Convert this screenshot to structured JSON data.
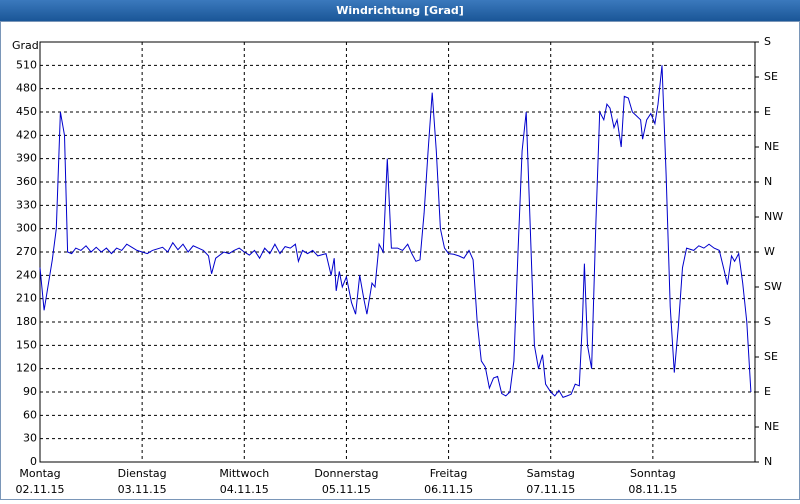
{
  "chart_data": {
    "type": "line",
    "title": "Windrichtung [Grad]",
    "ylabel": "Grad",
    "x": [
      0,
      0.04,
      0.12,
      0.16,
      0.2,
      0.24,
      0.27,
      0.31,
      0.35,
      0.4,
      0.45,
      0.5,
      0.55,
      0.6,
      0.65,
      0.7,
      0.75,
      0.8,
      0.85,
      0.9,
      0.95,
      1,
      1.05,
      1.1,
      1.2,
      1.25,
      1.3,
      1.35,
      1.4,
      1.45,
      1.5,
      1.55,
      1.6,
      1.65,
      1.68,
      1.72,
      1.8,
      1.85,
      1.9,
      1.95,
      2,
      2.05,
      2.1,
      2.15,
      2.2,
      2.25,
      2.3,
      2.35,
      2.4,
      2.45,
      2.5,
      2.53,
      2.57,
      2.62,
      2.67,
      2.72,
      2.8,
      2.85,
      2.88,
      2.9,
      2.93,
      2.96,
      3,
      3.05,
      3.09,
      3.13,
      3.17,
      3.2,
      3.25,
      3.28,
      3.32,
      3.36,
      3.4,
      3.44,
      3.5,
      3.55,
      3.6,
      3.64,
      3.68,
      3.72,
      3.76,
      3.8,
      3.84,
      3.88,
      3.92,
      3.96,
      4,
      4.05,
      4.1,
      4.15,
      4.2,
      4.24,
      4.28,
      4.32,
      4.36,
      4.4,
      4.44,
      4.48,
      4.52,
      4.56,
      4.6,
      4.64,
      4.68,
      4.72,
      4.76,
      4.8,
      4.84,
      4.88,
      4.92,
      4.95,
      5,
      5.04,
      5.08,
      5.12,
      5.16,
      5.2,
      5.24,
      5.28,
      5.31,
      5.33,
      5.36,
      5.4,
      5.44,
      5.48,
      5.52,
      5.55,
      5.58,
      5.62,
      5.65,
      5.69,
      5.72,
      5.76,
      5.8,
      5.84,
      5.88,
      5.9,
      5.94,
      5.98,
      6.02,
      6.05,
      6.09,
      6.13,
      6.17,
      6.21,
      6.25,
      6.29,
      6.33,
      6.4,
      6.45,
      6.5,
      6.55,
      6.6,
      6.65,
      6.7,
      6.73,
      6.77,
      6.8,
      6.84,
      6.88,
      6.92,
      6.96
    ],
    "series": [
      {
        "color": "#0000cc",
        "values": [
          250,
          195,
          260,
          300,
          450,
          420,
          270,
          268,
          275,
          272,
          278,
          270,
          276,
          270,
          275,
          268,
          275,
          272,
          280,
          276,
          272,
          270,
          268,
          272,
          276,
          270,
          282,
          273,
          280,
          270,
          278,
          275,
          272,
          265,
          242,
          262,
          270,
          268,
          272,
          275,
          270,
          266,
          272,
          262,
          275,
          268,
          280,
          268,
          277,
          275,
          280,
          258,
          272,
          268,
          272,
          265,
          268,
          240,
          262,
          220,
          245,
          225,
          238,
          205,
          190,
          240,
          210,
          190,
          230,
          225,
          280,
          270,
          390,
          275,
          275,
          272,
          280,
          268,
          258,
          260,
          320,
          400,
          475,
          400,
          300,
          275,
          268,
          267,
          265,
          262,
          272,
          260,
          180,
          130,
          122,
          95,
          108,
          110,
          88,
          85,
          90,
          130,
          270,
          400,
          450,
          300,
          150,
          120,
          138,
          100,
          90,
          85,
          92,
          83,
          85,
          87,
          100,
          98,
          180,
          255,
          150,
          120,
          300,
          450,
          440,
          460,
          455,
          430,
          440,
          405,
          470,
          468,
          450,
          445,
          440,
          415,
          440,
          448,
          435,
          460,
          510,
          370,
          200,
          115,
          175,
          250,
          275,
          272,
          278,
          275,
          280,
          275,
          272,
          245,
          228,
          265,
          258,
          268,
          230,
          180,
          90
        ]
      }
    ],
    "xlim": [
      0,
      7
    ],
    "xticks": [
      {
        "value": 0,
        "label": "Montag",
        "date": "02.11.15"
      },
      {
        "value": 1,
        "label": "Dienstag",
        "date": "03.11.15"
      },
      {
        "value": 2,
        "label": "Mittwoch",
        "date": "04.11.15"
      },
      {
        "value": 3,
        "label": "Donnerstag",
        "date": "05.11.15"
      },
      {
        "value": 4,
        "label": "Freitag",
        "date": "06.11.15"
      },
      {
        "value": 5,
        "label": "Samstag",
        "date": "07.11.15"
      },
      {
        "value": 6,
        "label": "Sonntag",
        "date": "08.11.15"
      }
    ],
    "ylim": [
      0,
      540
    ],
    "yticks": [
      0,
      30,
      60,
      90,
      120,
      150,
      180,
      210,
      240,
      270,
      300,
      330,
      360,
      390,
      420,
      450,
      480,
      510
    ],
    "y2lim": [
      0,
      540
    ],
    "y2ticks": [
      {
        "value": 0,
        "label": "N"
      },
      {
        "value": 45,
        "label": "NE"
      },
      {
        "value": 90,
        "label": "E"
      },
      {
        "value": 135,
        "label": "SE"
      },
      {
        "value": 180,
        "label": "S"
      },
      {
        "value": 225,
        "label": "SW"
      },
      {
        "value": 270,
        "label": "W"
      },
      {
        "value": 315,
        "label": "NW"
      },
      {
        "value": 360,
        "label": "N"
      },
      {
        "value": 405,
        "label": "NE"
      },
      {
        "value": 450,
        "label": "E"
      },
      {
        "value": 495,
        "label": "SE"
      },
      {
        "value": 540,
        "label": "S"
      }
    ],
    "grid": true
  }
}
